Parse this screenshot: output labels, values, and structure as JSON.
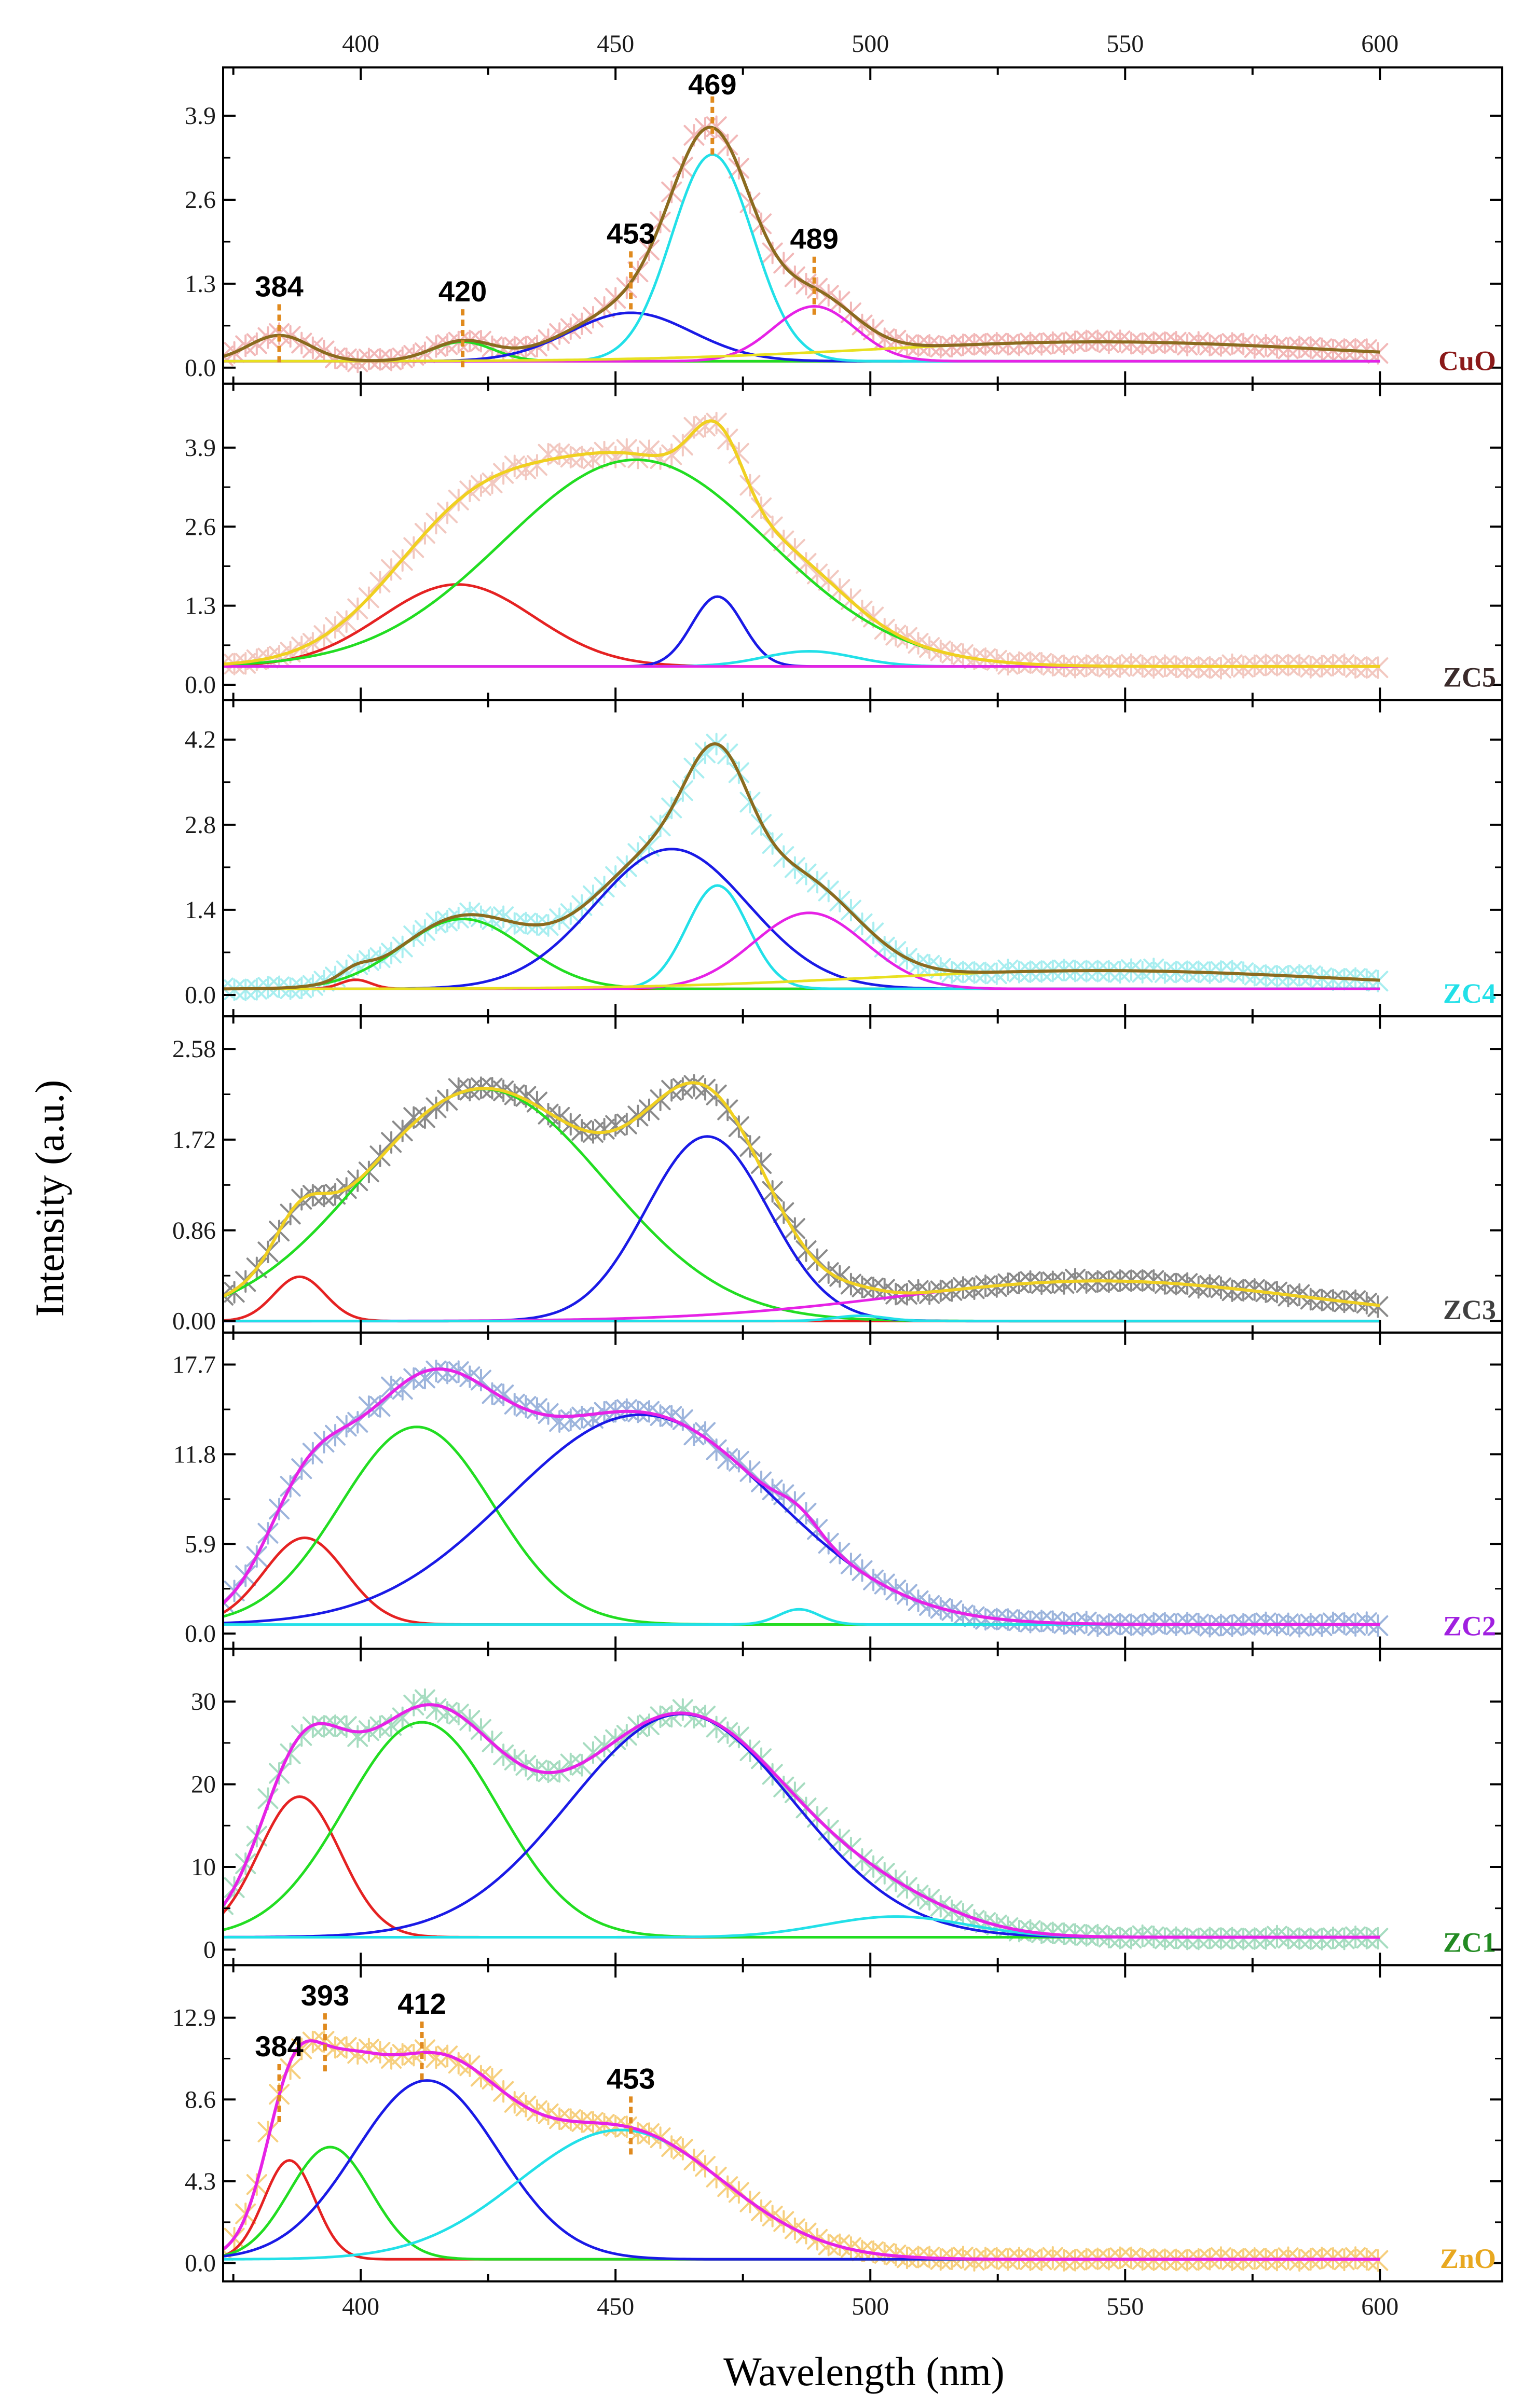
{
  "chart_data": {
    "type": "line",
    "title": "",
    "xlabel": "Wavelength (nm)",
    "ylabel": "Intensity (a.u.)",
    "xlim": [
      373,
      624
    ],
    "x_ticks": [
      400,
      450,
      500,
      550,
      600
    ],
    "x_tick_labels": [
      "400",
      "450",
      "500",
      "550",
      "600"
    ],
    "grid": false,
    "marker_color": "#e08a1e",
    "panels": [
      {
        "label": "CuO",
        "label_color": "#8b1a1a",
        "ylim": [
          -0.2,
          4.6
        ],
        "y_ticks": [
          0.0,
          1.3,
          2.6,
          3.9
        ],
        "y_tick_labels": [
          "0.0",
          "1.3",
          "2.6",
          "3.9"
        ],
        "data_color": "#f2b8b8",
        "total_color": "#8b6b1f",
        "baseline": 0.1,
        "peaks": [
          {
            "center": 384,
            "height": 0.4,
            "width": 6,
            "color": "#e52222"
          },
          {
            "center": 420,
            "height": 0.3,
            "width": 6,
            "color": "#22dd22"
          },
          {
            "center": 453,
            "height": 0.75,
            "width": 12,
            "color": "#1a1ae6"
          },
          {
            "center": 469,
            "height": 3.2,
            "width": 8,
            "color": "#22e0e8"
          },
          {
            "center": 489,
            "height": 0.85,
            "width": 8,
            "color": "#e622e6"
          },
          {
            "center": 545,
            "height": 0.3,
            "width": 45,
            "color": "#e8e020"
          }
        ],
        "markers": [
          {
            "x": 384,
            "text": "384"
          },
          {
            "x": 420,
            "text": "420"
          },
          {
            "x": 453,
            "text": "453"
          },
          {
            "x": 469,
            "text": "469"
          },
          {
            "x": 489,
            "text": "489"
          }
        ]
      },
      {
        "label": "ZC5",
        "label_color": "#3a2a2a",
        "ylim": [
          -0.2,
          4.9
        ],
        "y_ticks": [
          0.0,
          1.3,
          2.6,
          3.9
        ],
        "y_tick_labels": [
          "0.0",
          "1.3",
          "2.6",
          "3.9"
        ],
        "data_color": "#f2c8c0",
        "total_color": "#f0d020",
        "baseline": 0.3,
        "peaks": [
          {
            "center": 419,
            "height": 1.35,
            "width": 15,
            "color": "#e52222"
          },
          {
            "center": 454,
            "height": 3.4,
            "width": 26,
            "color": "#22dd22"
          },
          {
            "center": 470,
            "height": 1.15,
            "width": 5,
            "color": "#1a1ae6"
          },
          {
            "center": 488,
            "height": 0.25,
            "width": 9,
            "color": "#22e0e8"
          },
          {
            "center": 560,
            "height": 0.0,
            "width": 30,
            "color": "#e622e6"
          }
        ],
        "markers": []
      },
      {
        "label": "ZC4",
        "label_color": "#22e0e8",
        "ylim": [
          -0.3,
          4.8
        ],
        "y_ticks": [
          0.0,
          1.4,
          2.8,
          4.2
        ],
        "y_tick_labels": [
          "0.0",
          "1.4",
          "2.8",
          "4.2"
        ],
        "data_color": "#a8eef0",
        "total_color": "#8b6b1f",
        "baseline": 0.1,
        "peaks": [
          {
            "center": 399,
            "height": 0.15,
            "width": 3,
            "color": "#e52222"
          },
          {
            "center": 420,
            "height": 1.15,
            "width": 12,
            "color": "#22dd22"
          },
          {
            "center": 461,
            "height": 2.3,
            "width": 15,
            "color": "#1a1ae6"
          },
          {
            "center": 470,
            "height": 1.7,
            "width": 6,
            "color": "#22e0e8"
          },
          {
            "center": 488,
            "height": 1.25,
            "width": 11,
            "color": "#e622e6"
          },
          {
            "center": 545,
            "height": 0.3,
            "width": 45,
            "color": "#e8e020"
          }
        ],
        "markers": []
      },
      {
        "label": "ZC3",
        "label_color": "#404040",
        "ylim": [
          -0.08,
          2.86
        ],
        "y_ticks": [
          0.0,
          0.86,
          1.72,
          2.58
        ],
        "y_tick_labels": [
          "0.00",
          "0.86",
          "1.72",
          "2.58"
        ],
        "data_color": "#8a8a8a",
        "total_color": "#f0d020",
        "baseline": 0.0,
        "peaks": [
          {
            "center": 388,
            "height": 0.42,
            "width": 5,
            "color": "#e52222"
          },
          {
            "center": 424,
            "height": 2.2,
            "width": 24,
            "color": "#22dd22"
          },
          {
            "center": 468,
            "height": 1.75,
            "width": 12,
            "color": "#1a1ae6"
          },
          {
            "center": 545,
            "height": 0.38,
            "width": 40,
            "color": "#e622e6"
          },
          {
            "center": 498,
            "height": 0.05,
            "width": 5,
            "color": "#22e0e8"
          }
        ],
        "markers": []
      },
      {
        "label": "ZC2",
        "label_color": "#a020e0",
        "ylim": [
          -0.8,
          19.6
        ],
        "y_ticks": [
          0.0,
          5.9,
          11.8,
          17.7
        ],
        "y_tick_labels": [
          "0.0",
          "5.9",
          "11.8",
          "17.7"
        ],
        "data_color": "#9cb4dc",
        "total_color": "#e622e6",
        "baseline": 0.6,
        "peaks": [
          {
            "center": 389,
            "height": 5.7,
            "width": 8,
            "color": "#e52222"
          },
          {
            "center": 411,
            "height": 13.0,
            "width": 15,
            "color": "#22dd22"
          },
          {
            "center": 455,
            "height": 13.8,
            "width": 26,
            "color": "#1a1ae6"
          },
          {
            "center": 486,
            "height": 1.0,
            "width": 4,
            "color": "#22e0e8"
          }
        ],
        "markers": []
      },
      {
        "label": "ZC1",
        "label_color": "#228b22",
        "ylim": [
          -1.5,
          36.0
        ],
        "y_ticks": [
          0,
          10,
          20,
          30
        ],
        "y_tick_labels": [
          "0",
          "10",
          "20",
          "30"
        ],
        "data_color": "#a6dcc0",
        "total_color": "#e622e6",
        "baseline": 1.5,
        "peaks": [
          {
            "center": 388,
            "height": 17.0,
            "width": 8,
            "color": "#e52222"
          },
          {
            "center": 412,
            "height": 26.0,
            "width": 15,
            "color": "#22dd22"
          },
          {
            "center": 463,
            "height": 27.0,
            "width": 22,
            "color": "#1a1ae6"
          },
          {
            "center": 505,
            "height": 2.5,
            "width": 14,
            "color": "#22e0e8"
          }
        ],
        "markers": []
      },
      {
        "label": "ZnO",
        "label_color": "#e8a820",
        "ylim": [
          -0.8,
          15.5
        ],
        "y_ticks": [
          0.0,
          4.3,
          8.6,
          12.9
        ],
        "y_tick_labels": [
          "0.0",
          "4.3",
          "8.6",
          "12.9"
        ],
        "data_color": "#f6cf7e",
        "total_color": "#e622e6",
        "baseline": 0.2,
        "peaks": [
          {
            "center": 386,
            "height": 5.2,
            "width": 5,
            "color": "#e52222"
          },
          {
            "center": 394,
            "height": 5.9,
            "width": 8,
            "color": "#22dd22"
          },
          {
            "center": 413,
            "height": 9.4,
            "width": 14,
            "color": "#1a1ae6"
          },
          {
            "center": 451,
            "height": 6.8,
            "width": 20,
            "color": "#22e0e8"
          }
        ],
        "markers": [
          {
            "x": 384,
            "text": "384"
          },
          {
            "x": 393,
            "text": "393"
          },
          {
            "x": 412,
            "text": "412"
          },
          {
            "x": 453,
            "text": "453"
          }
        ]
      }
    ]
  }
}
